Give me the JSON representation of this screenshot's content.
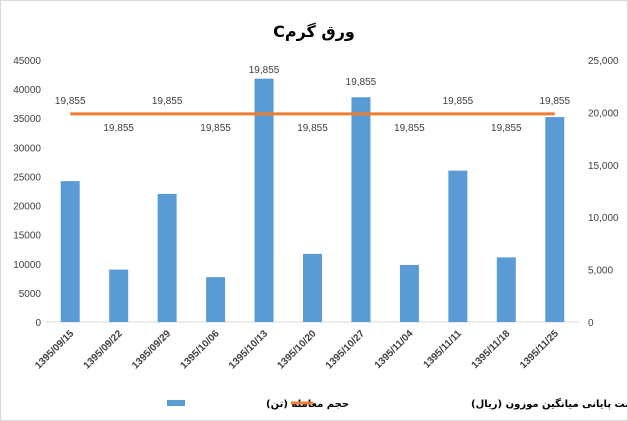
{
  "chart_data": {
    "type": "bar",
    "title": "ورق گرمC",
    "categories": [
      "1395/09/15",
      "1395/09/22",
      "1395/09/29",
      "1395/10/06",
      "1395/10/13",
      "1395/10/20",
      "1395/10/27",
      "1395/11/04",
      "1395/11/11",
      "1395/11/18",
      "1395/11/25"
    ],
    "series": [
      {
        "name": "حجم معامله (تن)",
        "type": "bar",
        "axis": "left",
        "color": "#5b9bd5",
        "values": [
          24200,
          9000,
          22000,
          7700,
          41800,
          11700,
          38600,
          9800,
          26000,
          11100,
          35200
        ]
      },
      {
        "name": "قیمت پایانی میانگین موزون (ریال)",
        "type": "line",
        "axis": "right",
        "color": "#ed7d31",
        "values": [
          19855,
          19855,
          19855,
          19855,
          19855,
          19855,
          19855,
          19855,
          19855,
          19855,
          19855
        ],
        "labels": [
          "19,855",
          "19,855",
          "19,855",
          "19,855",
          "19,855",
          "19,855",
          "19,855",
          "19,855",
          "19,855",
          "19,855",
          "19,855"
        ]
      }
    ],
    "y_left": {
      "ylim": [
        0,
        45000
      ],
      "ticks": [
        "0",
        "5000",
        "10000",
        "15000",
        "20000",
        "25000",
        "30000",
        "35000",
        "40000",
        "45000"
      ]
    },
    "y_right": {
      "ylim": [
        0,
        25000
      ],
      "ticks": [
        "0",
        "5,000",
        "10,000",
        "15,000",
        "20,000",
        "25,000"
      ]
    },
    "grid": false,
    "legend": "bottom"
  }
}
